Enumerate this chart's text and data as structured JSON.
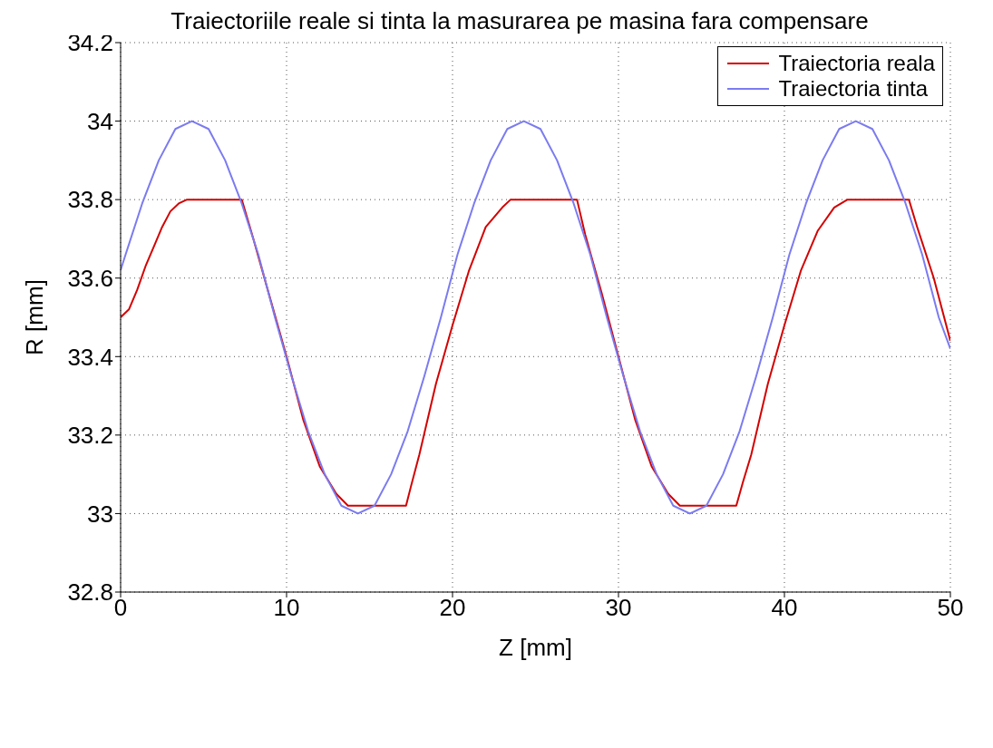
{
  "chart_data": {
    "type": "line",
    "title": "Traiectoriile reale si tinta la masurarea pe masina fara compensare",
    "xlabel": "Z [mm]",
    "ylabel": "R [mm]",
    "xlim": [
      0,
      50
    ],
    "xticks": [
      0,
      10,
      20,
      30,
      40,
      50
    ],
    "ylim": [
      32.8,
      34.2
    ],
    "yticks": [
      32.8,
      33,
      33.2,
      33.4,
      33.6,
      33.8,
      34,
      34.2
    ],
    "grid": true,
    "legend": "top right",
    "marker": "none",
    "line_style": "solid",
    "series": [
      {
        "name": "Traiectoria reala",
        "color": "#d40000",
        "x": [
          0,
          0.5,
          1,
          1.5,
          2,
          2.5,
          3,
          3.5,
          4,
          7.3,
          8,
          9,
          10,
          11,
          12,
          13,
          13.7,
          17.2,
          17.5,
          18,
          19,
          20,
          21,
          22,
          23,
          23.5,
          27.5,
          28,
          29,
          30,
          31,
          32,
          33,
          33.7,
          37.1,
          37.5,
          38,
          39,
          40,
          41,
          42,
          43,
          43.8,
          47.5,
          48,
          49,
          50
        ],
        "values": [
          33.5,
          33.52,
          33.57,
          33.63,
          33.68,
          33.73,
          33.77,
          33.79,
          33.8,
          33.8,
          33.7,
          33.55,
          33.4,
          33.24,
          33.12,
          33.05,
          33.02,
          33.02,
          33.07,
          33.15,
          33.33,
          33.48,
          33.62,
          33.73,
          33.78,
          33.8,
          33.8,
          33.71,
          33.56,
          33.4,
          33.24,
          33.12,
          33.05,
          33.02,
          33.02,
          33.08,
          33.15,
          33.33,
          33.48,
          33.62,
          33.72,
          33.78,
          33.8,
          33.8,
          33.73,
          33.6,
          33.44
        ]
      },
      {
        "name": "Traiectoria tinta",
        "color": "#7b7bf0",
        "x": [
          0,
          0.3,
          1.3,
          2.3,
          3.3,
          4.3,
          5.3,
          6.3,
          7.3,
          8.3,
          9.3,
          10.3,
          11.3,
          12.3,
          13.3,
          14.3,
          15.3,
          16.3,
          17.3,
          18.3,
          19.3,
          20.3,
          21.3,
          22.3,
          23.3,
          24.3,
          25.3,
          26.3,
          27.3,
          28.3,
          29.3,
          30.3,
          31.3,
          32.3,
          33.3,
          34.3,
          35.3,
          36.3,
          37.3,
          38.3,
          39.3,
          40.3,
          41.3,
          42.3,
          43.3,
          44.3,
          45.3,
          46.3,
          47.3,
          48.3,
          49.3,
          50
        ],
        "values": [
          33.62,
          33.66,
          33.79,
          33.9,
          33.98,
          34,
          33.98,
          33.9,
          33.79,
          33.66,
          33.5,
          33.35,
          33.21,
          33.1,
          33.02,
          33,
          33.02,
          33.1,
          33.21,
          33.35,
          33.5,
          33.66,
          33.79,
          33.9,
          33.98,
          34,
          33.98,
          33.9,
          33.79,
          33.66,
          33.5,
          33.35,
          33.21,
          33.1,
          33.02,
          33,
          33.02,
          33.1,
          33.21,
          33.35,
          33.5,
          33.66,
          33.79,
          33.9,
          33.98,
          34,
          33.98,
          33.9,
          33.79,
          33.66,
          33.5,
          33.42
        ]
      }
    ]
  }
}
